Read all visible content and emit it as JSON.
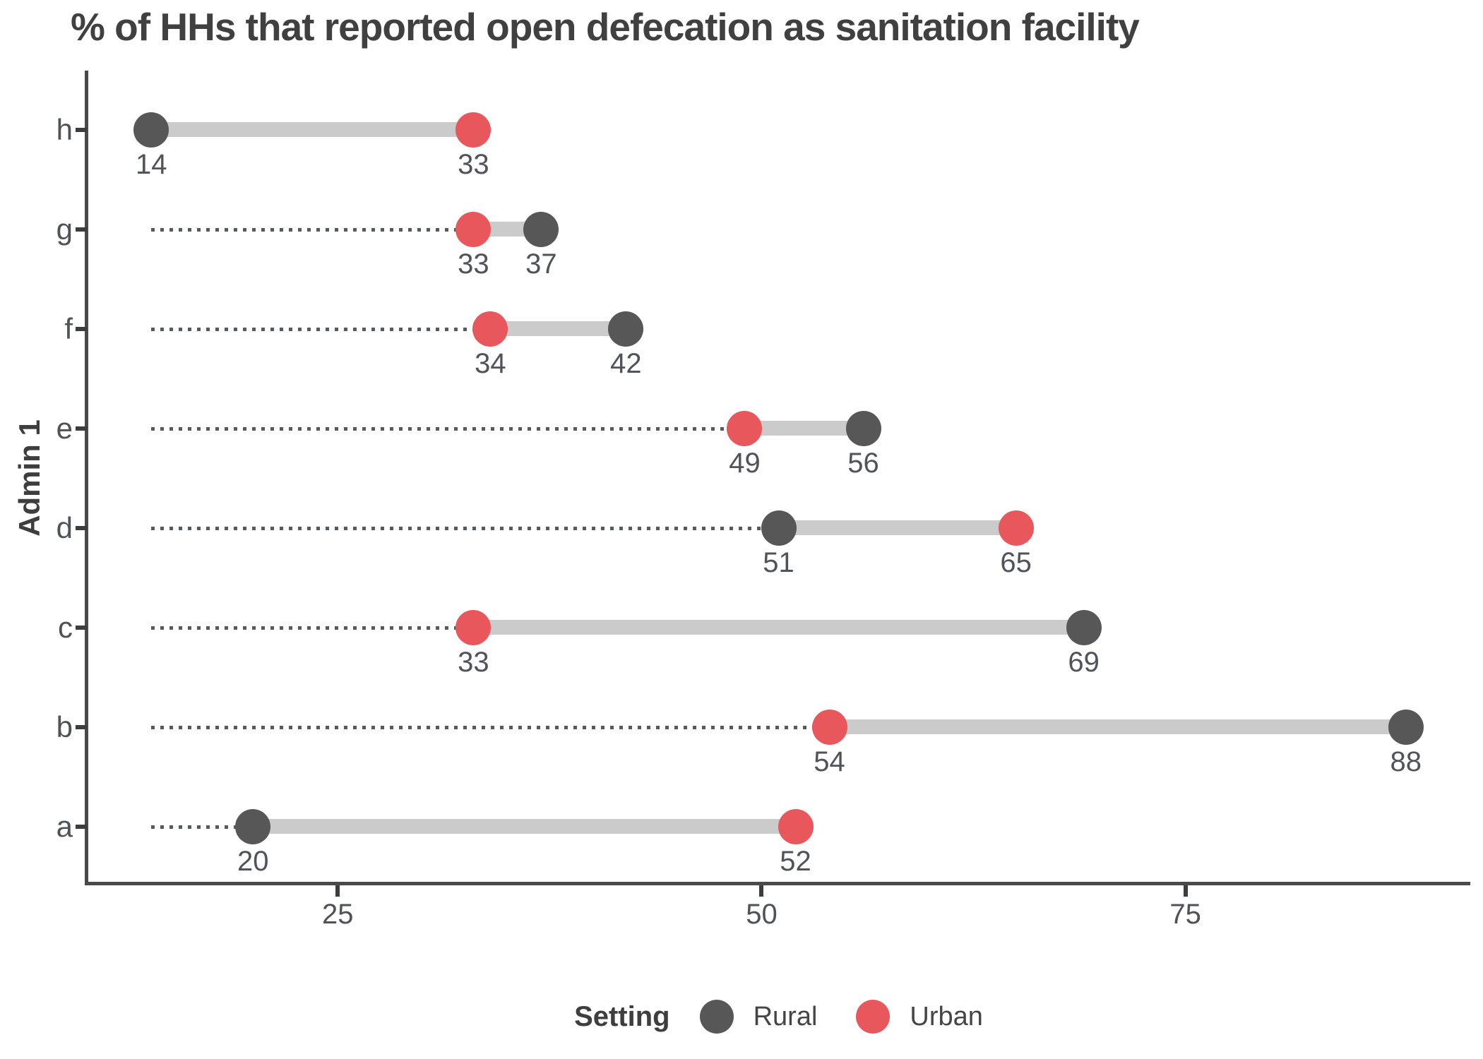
{
  "header": {
    "title": "% of HHs that reported open defecation as sanitation facility"
  },
  "chart_data": {
    "type": "dumbbell",
    "title": "% of HHs that reported open defecation as sanitation facility",
    "xlabel": "",
    "ylabel": "Admin 1",
    "xticks": [
      25,
      50,
      75
    ],
    "xlim": [
      10.2,
      91.8
    ],
    "leader_start": 14,
    "grid": false,
    "value_labels_shown": true,
    "categories": [
      "h",
      "g",
      "f",
      "e",
      "d",
      "c",
      "b",
      "a"
    ],
    "series": [
      {
        "name": "Rural",
        "values": [
          14,
          37,
          42,
          56,
          51,
          69,
          88,
          20
        ]
      },
      {
        "name": "Urban",
        "values": [
          33,
          33,
          34,
          49,
          65,
          33,
          54,
          52
        ]
      }
    ],
    "legend": {
      "title": "Setting",
      "position": "bottom",
      "entries": [
        {
          "label": "Rural",
          "color": "#575757"
        },
        {
          "label": "Urban",
          "color": "#e8575c"
        }
      ]
    },
    "colors": {
      "rural": "#575757",
      "urban": "#e8575c",
      "connector": "#cbcbcb",
      "leader": "#555a5e",
      "axis": "#4a4a4a",
      "tick": "#3d3d3d",
      "label_text": "#50535a",
      "title_text": "#404040"
    }
  }
}
